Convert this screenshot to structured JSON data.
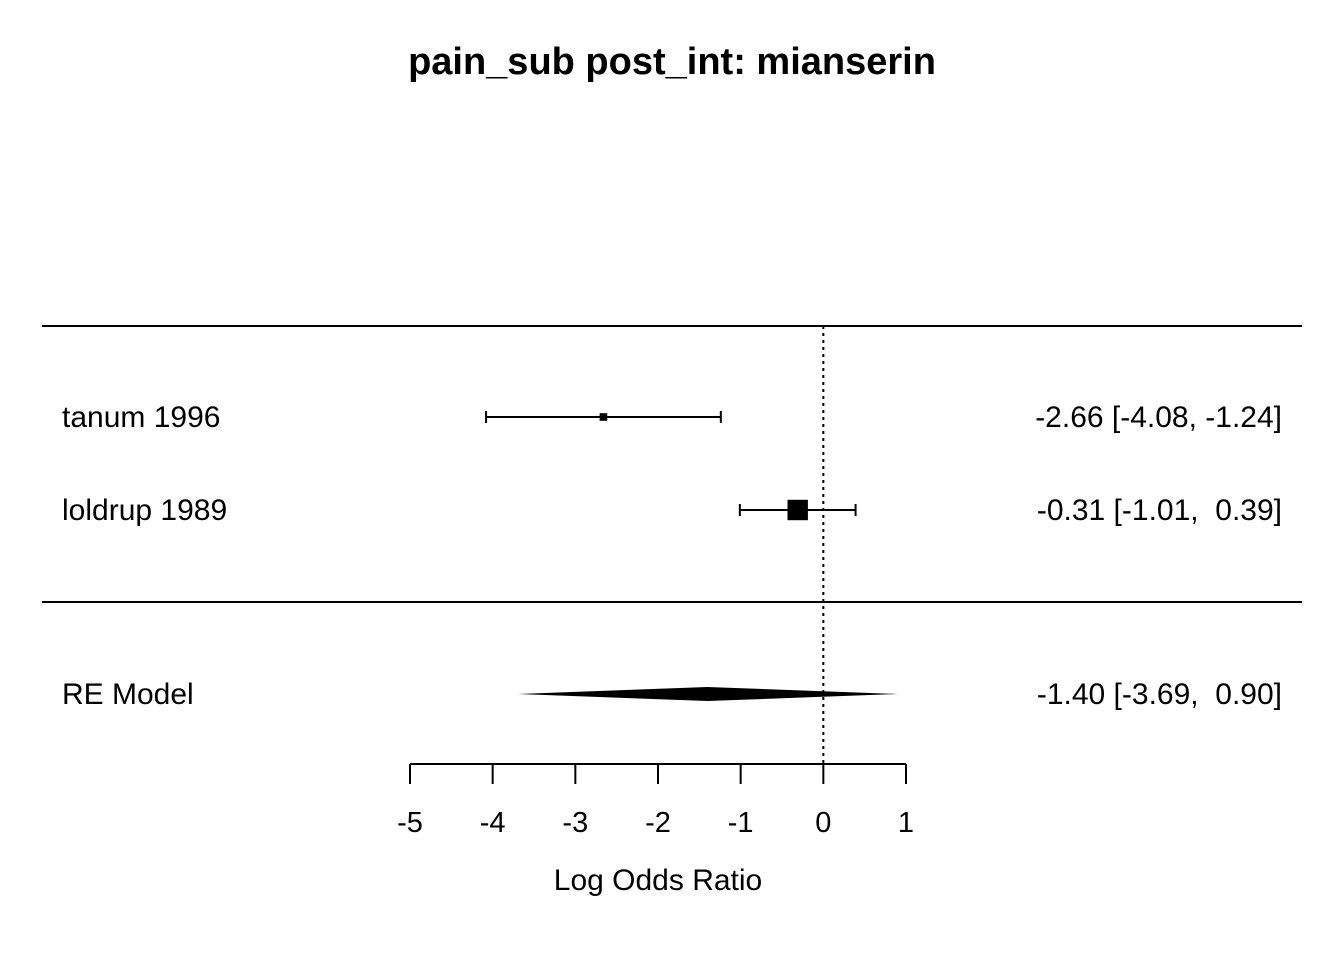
{
  "chart_data": {
    "type": "forest",
    "title": "pain_sub post_int: mianserin",
    "xlabel": "Log Odds Ratio",
    "xlim": [
      -5,
      1
    ],
    "xticks": [
      "-5",
      "-4",
      "-3",
      "-2",
      "-1",
      "0",
      "1"
    ],
    "reference_line": 0,
    "studies": [
      {
        "label": "tanum 1996",
        "estimate": -2.66,
        "ci_low": -4.08,
        "ci_high": -1.24,
        "weight": 0.1,
        "text": "-2.66 [-4.08, -1.24]"
      },
      {
        "label": "loldrup 1989",
        "estimate": -0.31,
        "ci_low": -1.01,
        "ci_high": 0.39,
        "weight": 0.9,
        "text": "-0.31 [-1.01,  0.39]"
      }
    ],
    "summary": {
      "label": "RE Model",
      "estimate": -1.4,
      "ci_low": -3.69,
      "ci_high": 0.9,
      "text": "-1.40 [-3.69,  0.90]"
    }
  }
}
